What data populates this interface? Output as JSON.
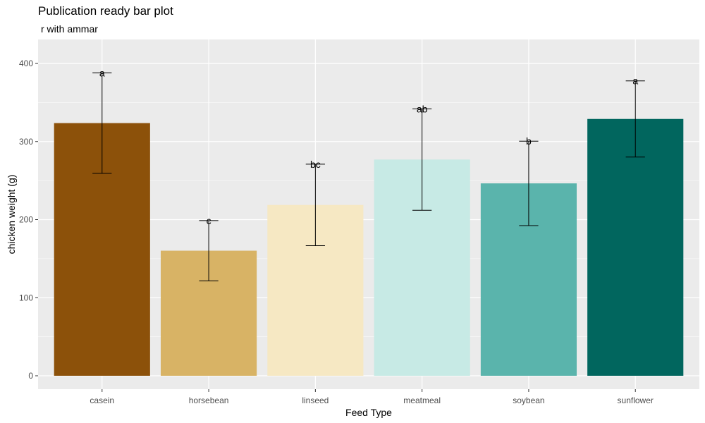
{
  "chart_data": {
    "type": "bar",
    "title": "Publication ready bar plot",
    "subtitle": "r with ammar",
    "xlabel": "Feed Type",
    "ylabel": "chicken weight (g)",
    "categories": [
      "casein",
      "horsebean",
      "linseed",
      "meatmeal",
      "soybean",
      "sunflower"
    ],
    "values": [
      323.6,
      160.2,
      218.8,
      276.9,
      246.4,
      328.9
    ],
    "sd": [
      64.4,
      38.6,
      52.2,
      64.9,
      54.1,
      48.8
    ],
    "labels": [
      "a",
      "c",
      "bc",
      "ab",
      "b",
      "a"
    ],
    "colors": [
      "#8C510A",
      "#D8B365",
      "#F6E8C3",
      "#C7EAE5",
      "#5AB4AC",
      "#01665E"
    ],
    "ylim": [
      0,
      430
    ],
    "yticks": [
      0,
      100,
      200,
      300,
      400
    ],
    "grid": true,
    "legend": "none",
    "panel_background": "#EBEBEB"
  }
}
